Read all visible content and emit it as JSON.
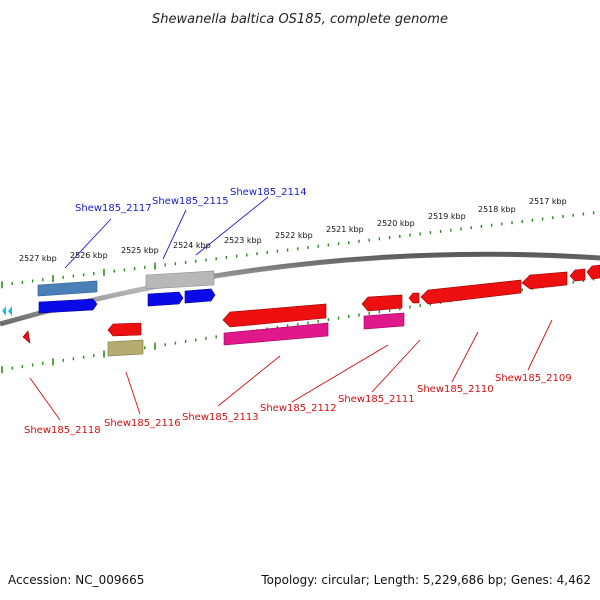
{
  "title": "Shewanella baltica OS185, complete genome",
  "accession": "Accession: NC_009665",
  "summary": "Topology: circular; Length: 5,229,686 bp; Genes: 4,462",
  "colors": {
    "backbone": "#808080",
    "tick": "#2a8a1e",
    "label_forward": "#1a1ac8",
    "label_reverse": "#d01010",
    "gene_forward": "#0a0ae8",
    "gene_reverse": "#ee1010",
    "feature_steelblue": "#4a7fb8",
    "feature_gray": "#b0b0b0",
    "feature_magenta": "#e0188a",
    "feature_olive": "#b4ac70",
    "feature_pink": "#ff6a8a",
    "feature_cyan": "#27b8f0"
  },
  "scale_labels": [
    {
      "name": "kbp-2527",
      "text": "2527 kbp"
    },
    {
      "name": "kbp-2526",
      "text": "2526 kbp"
    },
    {
      "name": "kbp-2525",
      "text": "2525 kbp"
    },
    {
      "name": "kbp-2524",
      "text": "2524 kbp"
    },
    {
      "name": "kbp-2523",
      "text": "2523 kbp"
    },
    {
      "name": "kbp-2522",
      "text": "2522 kbp"
    },
    {
      "name": "kbp-2521",
      "text": "2521 kbp"
    },
    {
      "name": "kbp-2520",
      "text": "2520 kbp"
    },
    {
      "name": "kbp-2519",
      "text": "2519 kbp"
    },
    {
      "name": "kbp-2518",
      "text": "2518 kbp"
    },
    {
      "name": "kbp-2517",
      "text": "2517 kbp"
    }
  ],
  "forward_genes": [
    {
      "name": "shew185-2117",
      "text": "Shew185_2117"
    },
    {
      "name": "shew185-2115",
      "text": "Shew185_2115"
    },
    {
      "name": "shew185-2114",
      "text": "Shew185_2114"
    }
  ],
  "reverse_genes": [
    {
      "name": "shew185-2118",
      "text": "Shew185_2118"
    },
    {
      "name": "shew185-2116",
      "text": "Shew185_2116"
    },
    {
      "name": "shew185-2113",
      "text": "Shew185_2113"
    },
    {
      "name": "shew185-2112",
      "text": "Shew185_2112"
    },
    {
      "name": "shew185-2111",
      "text": "Shew185_2111"
    },
    {
      "name": "shew185-2110",
      "text": "Shew185_2110"
    },
    {
      "name": "shew185-2109",
      "text": "Shew185_2109"
    }
  ]
}
